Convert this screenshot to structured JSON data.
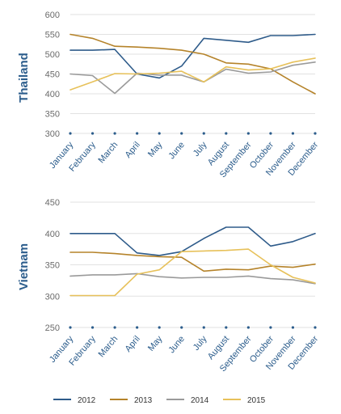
{
  "chart_data": [
    {
      "type": "line",
      "title": "Thailand",
      "categories": [
        "January",
        "February",
        "March",
        "April",
        "May",
        "June",
        "July",
        "August",
        "September",
        "October",
        "November",
        "December"
      ],
      "ylim": [
        300,
        600
      ],
      "yticks": [
        300,
        350,
        400,
        450,
        500,
        550,
        600
      ],
      "grid": true,
      "series": [
        {
          "name": "2012",
          "color": "#2e5b8a",
          "values": [
            510,
            510,
            512,
            450,
            440,
            470,
            540,
            535,
            530,
            547,
            547,
            550
          ]
        },
        {
          "name": "2013",
          "color": "#b5832a",
          "values": [
            550,
            540,
            520,
            518,
            515,
            510,
            500,
            478,
            475,
            463,
            430,
            400
          ]
        },
        {
          "name": "2014",
          "color": "#9a9a9a",
          "values": [
            450,
            446,
            401,
            452,
            447,
            447,
            430,
            462,
            452,
            455,
            472,
            480
          ]
        },
        {
          "name": "2015",
          "color": "#e7c15a",
          "values": [
            410,
            430,
            451,
            450,
            452,
            457,
            430,
            468,
            460,
            463,
            480,
            490
          ]
        }
      ]
    },
    {
      "type": "line",
      "title": "Vietnam",
      "categories": [
        "January",
        "February",
        "March",
        "April",
        "May",
        "June",
        "July",
        "August",
        "September",
        "October",
        "November",
        "December"
      ],
      "ylim": [
        250,
        450
      ],
      "yticks": [
        250,
        300,
        350,
        400,
        450
      ],
      "grid": true,
      "series": [
        {
          "name": "2012",
          "color": "#2e5b8a",
          "values": [
            400,
            400,
            400,
            369,
            365,
            371,
            392,
            410,
            410,
            380,
            387,
            400
          ]
        },
        {
          "name": "2013",
          "color": "#b5832a",
          "values": [
            370,
            370,
            368,
            365,
            363,
            362,
            340,
            343,
            342,
            348,
            346,
            351
          ]
        },
        {
          "name": "2014",
          "color": "#9a9a9a",
          "values": [
            332,
            334,
            334,
            336,
            331,
            329,
            330,
            330,
            332,
            328,
            326,
            320
          ]
        },
        {
          "name": "2015",
          "color": "#e7c15a",
          "values": [
            301,
            301,
            301,
            335,
            342,
            371,
            372,
            373,
            375,
            350,
            330,
            321
          ]
        }
      ]
    }
  ],
  "legend": [
    {
      "label": "2012",
      "color": "#2e5b8a"
    },
    {
      "label": "2013",
      "color": "#b5832a"
    },
    {
      "label": "2014",
      "color": "#9a9a9a"
    },
    {
      "label": "2015",
      "color": "#e7c15a"
    }
  ]
}
